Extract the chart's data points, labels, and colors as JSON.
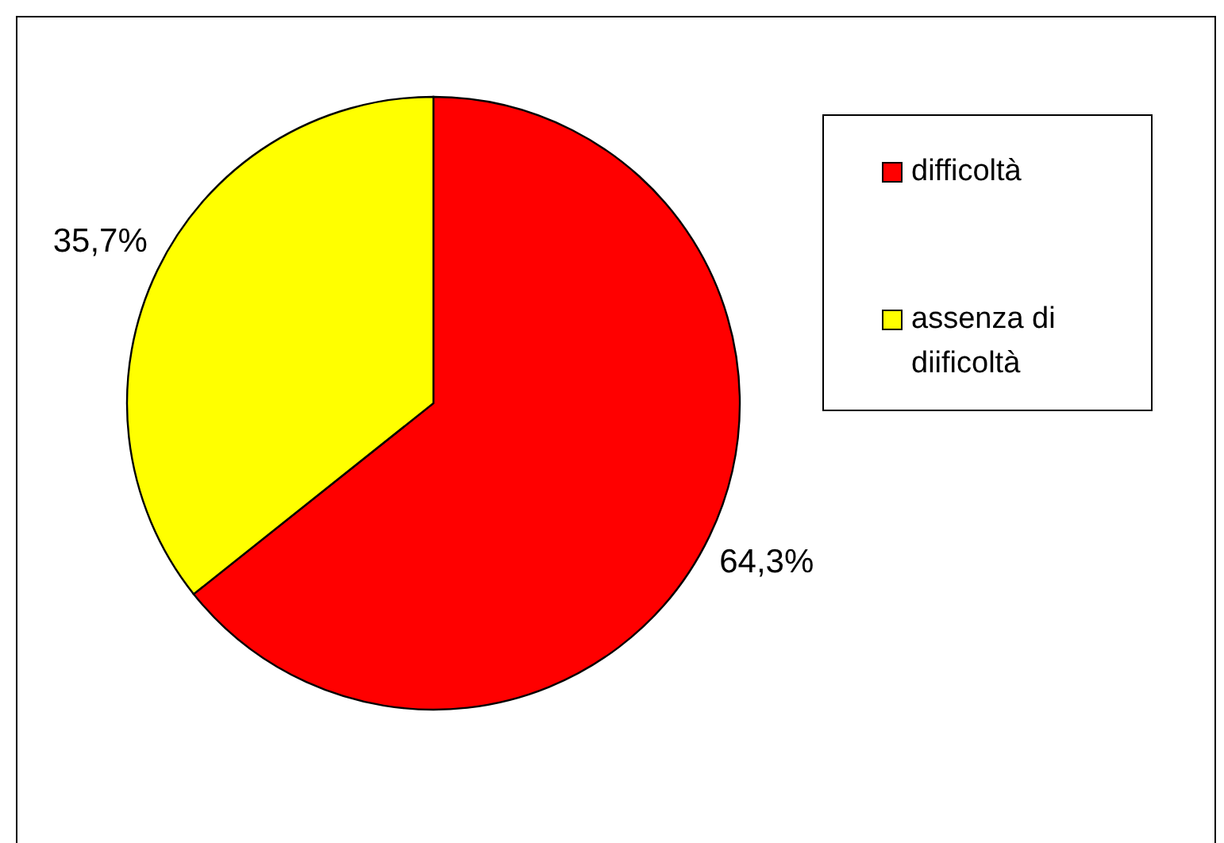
{
  "chart_data": {
    "type": "pie",
    "categories": [
      "difficoltà",
      "assenza di diificoltà"
    ],
    "values": [
      64.3,
      35.7
    ],
    "colors": [
      "#ff0000",
      "#ffff00"
    ],
    "value_labels": [
      "64,3%",
      "35,7%"
    ],
    "legend": "right"
  }
}
